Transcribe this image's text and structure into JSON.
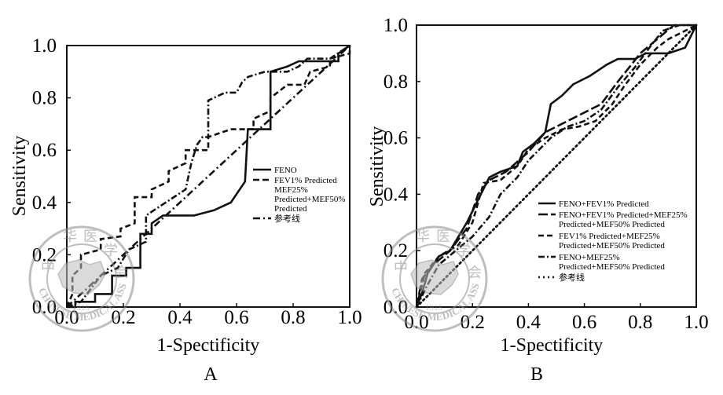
{
  "chart_data": [
    {
      "type": "line",
      "panel_label": "A",
      "xlabel": "1-Spectificity",
      "ylabel": "Sensitivity",
      "xlim": [
        0,
        1
      ],
      "ylim": [
        0,
        1
      ],
      "xticks": [
        "0.0",
        "0.2",
        "0.4",
        "0.6",
        "0.8",
        "1.0"
      ],
      "yticks": [
        "0.0",
        "0.2",
        "0.4",
        "0.6",
        "0.8",
        "1.0"
      ],
      "grid": false,
      "legend_position": "center-right",
      "series": [
        {
          "name": "FENO",
          "style": "solid",
          "points": [
            [
              0,
              0
            ],
            [
              0.03,
              0
            ],
            [
              0.03,
              0.02
            ],
            [
              0.1,
              0.02
            ],
            [
              0.1,
              0.05
            ],
            [
              0.16,
              0.05
            ],
            [
              0.16,
              0.12
            ],
            [
              0.21,
              0.12
            ],
            [
              0.21,
              0.15
            ],
            [
              0.26,
              0.15
            ],
            [
              0.26,
              0.28
            ],
            [
              0.3,
              0.28
            ],
            [
              0.3,
              0.32
            ],
            [
              0.34,
              0.35
            ],
            [
              0.45,
              0.35
            ],
            [
              0.52,
              0.37
            ],
            [
              0.58,
              0.4
            ],
            [
              0.63,
              0.48
            ],
            [
              0.64,
              0.68
            ],
            [
              0.72,
              0.68
            ],
            [
              0.72,
              0.9
            ],
            [
              0.78,
              0.92
            ],
            [
              0.82,
              0.94
            ],
            [
              0.96,
              0.94
            ],
            [
              0.96,
              0.97
            ],
            [
              1,
              1
            ]
          ]
        },
        {
          "name": "FEV1% Predicted MEF25% Predicted+MEF50% Predicted",
          "style": "dashed",
          "points": [
            [
              0,
              0
            ],
            [
              0.02,
              0.05
            ],
            [
              0.02,
              0.12
            ],
            [
              0.05,
              0.15
            ],
            [
              0.05,
              0.2
            ],
            [
              0.12,
              0.22
            ],
            [
              0.12,
              0.26
            ],
            [
              0.19,
              0.27
            ],
            [
              0.19,
              0.3
            ],
            [
              0.24,
              0.32
            ],
            [
              0.24,
              0.42
            ],
            [
              0.3,
              0.42
            ],
            [
              0.3,
              0.45
            ],
            [
              0.36,
              0.48
            ],
            [
              0.36,
              0.52
            ],
            [
              0.42,
              0.55
            ],
            [
              0.42,
              0.6
            ],
            [
              0.5,
              0.6
            ],
            [
              0.5,
              0.65
            ],
            [
              0.58,
              0.68
            ],
            [
              0.66,
              0.68
            ],
            [
              0.66,
              0.72
            ],
            [
              0.72,
              0.75
            ],
            [
              0.72,
              0.8
            ],
            [
              0.78,
              0.85
            ],
            [
              0.84,
              0.85
            ],
            [
              0.86,
              0.9
            ],
            [
              0.93,
              0.92
            ],
            [
              0.93,
              0.95
            ],
            [
              1,
              0.97
            ],
            [
              1,
              1
            ]
          ]
        },
        {
          "name": "参考线",
          "style": "dash-dot",
          "points": [
            [
              0,
              0
            ],
            [
              0.05,
              0.02
            ],
            [
              0.12,
              0.12
            ],
            [
              0.18,
              0.15
            ],
            [
              0.22,
              0.22
            ],
            [
              0.28,
              0.25
            ],
            [
              0.28,
              0.35
            ],
            [
              0.35,
              0.4
            ],
            [
              0.42,
              0.45
            ],
            [
              0.44,
              0.55
            ],
            [
              0.46,
              0.62
            ],
            [
              0.48,
              0.65
            ],
            [
              0.5,
              0.65
            ],
            [
              0.5,
              0.79
            ],
            [
              0.56,
              0.82
            ],
            [
              0.6,
              0.82
            ],
            [
              0.62,
              0.86
            ],
            [
              0.64,
              0.88
            ],
            [
              0.7,
              0.9
            ],
            [
              0.78,
              0.9
            ],
            [
              0.82,
              0.92
            ],
            [
              0.85,
              0.95
            ],
            [
              0.93,
              0.95
            ],
            [
              1,
              1
            ]
          ]
        },
        {
          "name": "",
          "style": "dash-dot-diagonal",
          "points": [
            [
              0,
              0
            ],
            [
              1,
              1
            ]
          ]
        }
      ]
    },
    {
      "type": "line",
      "panel_label": "B",
      "xlabel": "1-Spectificity",
      "ylabel": "Sensitivity",
      "xlim": [
        0,
        1
      ],
      "ylim": [
        0,
        1
      ],
      "xticks": [
        "0.0",
        "0.2",
        "0.4",
        "0.6",
        "0.8",
        "1.0"
      ],
      "yticks": [
        "0.0",
        "0.2",
        "0.4",
        "0.6",
        "0.8",
        "1.0"
      ],
      "grid": false,
      "legend_position": "lower-right",
      "series": [
        {
          "name": "FENO+FEV1% Predicted",
          "style": "solid",
          "points": [
            [
              0,
              0
            ],
            [
              0.02,
              0.05
            ],
            [
              0.04,
              0.12
            ],
            [
              0.08,
              0.18
            ],
            [
              0.12,
              0.2
            ],
            [
              0.15,
              0.25
            ],
            [
              0.18,
              0.3
            ],
            [
              0.22,
              0.38
            ],
            [
              0.26,
              0.46
            ],
            [
              0.3,
              0.48
            ],
            [
              0.36,
              0.5
            ],
            [
              0.38,
              0.55
            ],
            [
              0.42,
              0.58
            ],
            [
              0.46,
              0.62
            ],
            [
              0.48,
              0.72
            ],
            [
              0.52,
              0.75
            ],
            [
              0.56,
              0.79
            ],
            [
              0.62,
              0.82
            ],
            [
              0.68,
              0.86
            ],
            [
              0.72,
              0.88
            ],
            [
              0.78,
              0.88
            ],
            [
              0.82,
              0.9
            ],
            [
              0.9,
              0.9
            ],
            [
              0.96,
              0.92
            ],
            [
              1,
              1
            ]
          ]
        },
        {
          "name": "FENO+FEV1% Predicted+MEF25% Predicted+MEF50% Predicted",
          "style": "long-dash",
          "points": [
            [
              0,
              0
            ],
            [
              0.02,
              0.1
            ],
            [
              0.06,
              0.15
            ],
            [
              0.12,
              0.2
            ],
            [
              0.18,
              0.28
            ],
            [
              0.22,
              0.4
            ],
            [
              0.26,
              0.45
            ],
            [
              0.32,
              0.48
            ],
            [
              0.4,
              0.55
            ],
            [
              0.46,
              0.62
            ],
            [
              0.52,
              0.65
            ],
            [
              0.58,
              0.68
            ],
            [
              0.62,
              0.7
            ],
            [
              0.66,
              0.72
            ],
            [
              0.72,
              0.8
            ],
            [
              0.76,
              0.85
            ],
            [
              0.8,
              0.9
            ],
            [
              0.86,
              0.95
            ],
            [
              0.92,
              1
            ],
            [
              1,
              1
            ]
          ]
        },
        {
          "name": "FEV1% Predicted+MEF25% Predicted+MEF50% Predicted",
          "style": "dashed",
          "points": [
            [
              0,
              0
            ],
            [
              0.03,
              0.12
            ],
            [
              0.08,
              0.18
            ],
            [
              0.15,
              0.22
            ],
            [
              0.2,
              0.3
            ],
            [
              0.24,
              0.44
            ],
            [
              0.3,
              0.45
            ],
            [
              0.36,
              0.5
            ],
            [
              0.4,
              0.56
            ],
            [
              0.46,
              0.6
            ],
            [
              0.52,
              0.63
            ],
            [
              0.58,
              0.64
            ],
            [
              0.64,
              0.66
            ],
            [
              0.7,
              0.72
            ],
            [
              0.74,
              0.78
            ],
            [
              0.8,
              0.86
            ],
            [
              0.86,
              0.92
            ],
            [
              0.9,
              0.95
            ],
            [
              0.96,
              0.98
            ],
            [
              1,
              1
            ]
          ]
        },
        {
          "name": "FENO+MEF25% Predicted+MEF50% Predicted",
          "style": "dash-dot",
          "points": [
            [
              0,
              0
            ],
            [
              0.04,
              0.08
            ],
            [
              0.08,
              0.15
            ],
            [
              0.14,
              0.2
            ],
            [
              0.2,
              0.25
            ],
            [
              0.26,
              0.32
            ],
            [
              0.3,
              0.4
            ],
            [
              0.36,
              0.46
            ],
            [
              0.4,
              0.52
            ],
            [
              0.44,
              0.56
            ],
            [
              0.48,
              0.6
            ],
            [
              0.54,
              0.64
            ],
            [
              0.6,
              0.66
            ],
            [
              0.66,
              0.7
            ],
            [
              0.72,
              0.78
            ],
            [
              0.78,
              0.85
            ],
            [
              0.84,
              0.93
            ],
            [
              0.88,
              0.98
            ],
            [
              0.94,
              1
            ],
            [
              1,
              1
            ]
          ]
        },
        {
          "name": "参考线",
          "style": "dotted",
          "points": [
            [
              0,
              0
            ],
            [
              1,
              1
            ]
          ]
        }
      ]
    }
  ],
  "watermark": {
    "chars_top": [
      "中",
      "华",
      "医",
      "学",
      "会"
    ],
    "text_bottom": "CHINESE MEDICAL ASSOCIATION",
    "year": "1915"
  },
  "colors": {
    "ink": "#111111",
    "watermark": "#9a9a9a"
  }
}
